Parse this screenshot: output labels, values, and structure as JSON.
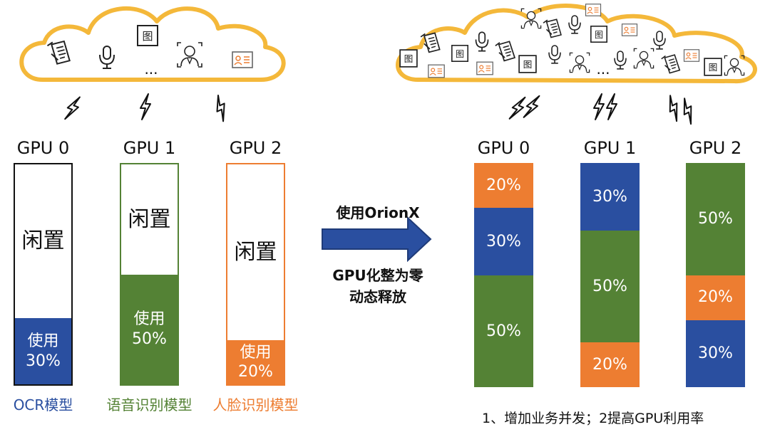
{
  "colors": {
    "blue": "#2a4fa0",
    "green": "#548235",
    "orange": "#ed7d31",
    "cloud": "#f4b83a",
    "black": "#111111"
  },
  "left": {
    "gpus": [
      {
        "label": "GPU 0",
        "border": "#111111",
        "segments": [
          {
            "text": "闲置",
            "pct": 70,
            "color": "#ffffff",
            "style": "white"
          },
          {
            "text": "使用\n30%",
            "pct": 30,
            "color": "#2a4fa0",
            "style": "color"
          }
        ],
        "model": "OCR模型",
        "model_color": "#2a4fa0"
      },
      {
        "label": "GPU 1",
        "border": "#548235",
        "segments": [
          {
            "text": "闲置",
            "pct": 50,
            "color": "#ffffff",
            "style": "white"
          },
          {
            "text": "使用\n50%",
            "pct": 50,
            "color": "#548235",
            "style": "color"
          }
        ],
        "model": "语音识别模型",
        "model_color": "#548235"
      },
      {
        "label": "GPU 2",
        "border": "#ed7d31",
        "segments": [
          {
            "text": "闲置",
            "pct": 80,
            "color": "#ffffff",
            "style": "white"
          },
          {
            "text": "使用\n20%",
            "pct": 20,
            "color": "#ed7d31",
            "style": "color"
          }
        ],
        "model": "人脸识别模型",
        "model_color": "#ed7d31"
      }
    ],
    "cloud_ellipsis": "..."
  },
  "arrow": {
    "top_text": "使用OrionX",
    "bottom_text": "GPU化整为零\n动态释放"
  },
  "right": {
    "gpus": [
      {
        "label": "GPU 0",
        "segments": [
          {
            "text": "20%",
            "pct": 20,
            "color": "#ed7d31"
          },
          {
            "text": "30%",
            "pct": 30,
            "color": "#2a4fa0"
          },
          {
            "text": "50%",
            "pct": 50,
            "color": "#548235"
          }
        ]
      },
      {
        "label": "GPU 1",
        "segments": [
          {
            "text": "30%",
            "pct": 30,
            "color": "#2a4fa0"
          },
          {
            "text": "50%",
            "pct": 50,
            "color": "#548235"
          },
          {
            "text": "20%",
            "pct": 20,
            "color": "#ed7d31"
          }
        ]
      },
      {
        "label": "GPU 2",
        "segments": [
          {
            "text": "50%",
            "pct": 50,
            "color": "#548235"
          },
          {
            "text": "20%",
            "pct": 20,
            "color": "#ed7d31"
          },
          {
            "text": "30%",
            "pct": 30,
            "color": "#2a4fa0"
          }
        ]
      }
    ],
    "cloud_ellipsis": "...",
    "note": "1、增加业务并发；2提高GPU利用率"
  }
}
